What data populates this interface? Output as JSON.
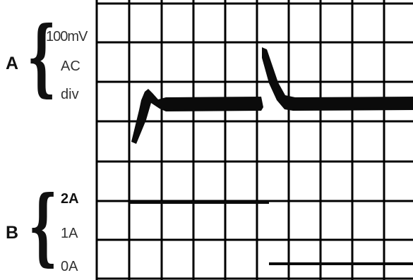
{
  "channel_a": {
    "label": "A",
    "scale_lines": [
      "100mV",
      "AC",
      "div"
    ]
  },
  "channel_b": {
    "label": "B",
    "levels": [
      "2A",
      "1A",
      "0A"
    ]
  },
  "colors": {
    "grid": "#000000",
    "trace": "#0b0b0b",
    "background": "#ffffff"
  }
}
